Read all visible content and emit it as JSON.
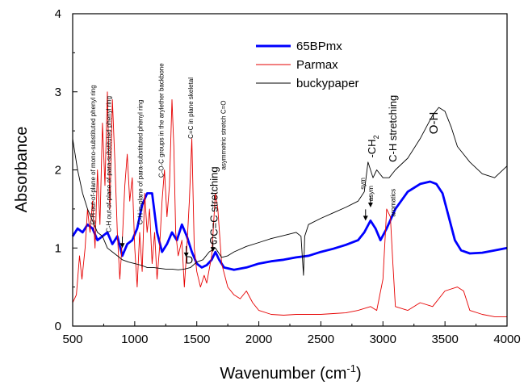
{
  "chart_data": {
    "type": "line",
    "xlabel": "Wavenumber (cm",
    "xlabel_sup": "-1",
    "xlabel_close": ")",
    "ylabel": "Absorbance",
    "xlim": [
      500,
      4000
    ],
    "ylim": [
      0,
      4
    ],
    "xticks": [
      500,
      1000,
      1500,
      2000,
      2500,
      3000,
      3500,
      4000
    ],
    "yticks": [
      0,
      1,
      2,
      3,
      4
    ],
    "legend_position": "top-center",
    "series": [
      {
        "name": "65BPmx",
        "color": "#0000ff",
        "points": [
          [
            500,
            1.15
          ],
          [
            540,
            1.25
          ],
          [
            580,
            1.2
          ],
          [
            620,
            1.3
          ],
          [
            660,
            1.25
          ],
          [
            700,
            1.1
          ],
          [
            740,
            1.15
          ],
          [
            780,
            1.2
          ],
          [
            820,
            1.05
          ],
          [
            860,
            1.15
          ],
          [
            900,
            0.9
          ],
          [
            940,
            1.05
          ],
          [
            980,
            1.1
          ],
          [
            1020,
            1.25
          ],
          [
            1060,
            1.55
          ],
          [
            1100,
            1.7
          ],
          [
            1140,
            1.7
          ],
          [
            1180,
            1.2
          ],
          [
            1220,
            0.95
          ],
          [
            1260,
            1.05
          ],
          [
            1300,
            1.2
          ],
          [
            1340,
            1.1
          ],
          [
            1380,
            1.3
          ],
          [
            1420,
            1.15
          ],
          [
            1460,
            0.95
          ],
          [
            1500,
            0.8
          ],
          [
            1540,
            0.75
          ],
          [
            1580,
            0.78
          ],
          [
            1620,
            0.85
          ],
          [
            1650,
            0.95
          ],
          [
            1680,
            0.85
          ],
          [
            1720,
            0.75
          ],
          [
            1800,
            0.72
          ],
          [
            1900,
            0.75
          ],
          [
            2000,
            0.8
          ],
          [
            2100,
            0.83
          ],
          [
            2200,
            0.85
          ],
          [
            2300,
            0.88
          ],
          [
            2400,
            0.9
          ],
          [
            2500,
            0.95
          ],
          [
            2600,
            0.99
          ],
          [
            2700,
            1.04
          ],
          [
            2800,
            1.1
          ],
          [
            2850,
            1.2
          ],
          [
            2900,
            1.35
          ],
          [
            2940,
            1.25
          ],
          [
            2980,
            1.1
          ],
          [
            3030,
            1.25
          ],
          [
            3100,
            1.5
          ],
          [
            3200,
            1.72
          ],
          [
            3300,
            1.82
          ],
          [
            3380,
            1.85
          ],
          [
            3430,
            1.82
          ],
          [
            3480,
            1.7
          ],
          [
            3530,
            1.4
          ],
          [
            3580,
            1.1
          ],
          [
            3630,
            0.97
          ],
          [
            3700,
            0.93
          ],
          [
            3800,
            0.94
          ],
          [
            3900,
            0.97
          ],
          [
            4000,
            1.0
          ]
        ]
      },
      {
        "name": "Parmax",
        "color": "#e60000",
        "points": [
          [
            500,
            0.3
          ],
          [
            530,
            0.4
          ],
          [
            555,
            0.9
          ],
          [
            575,
            0.6
          ],
          [
            600,
            1.0
          ],
          [
            620,
            1.5
          ],
          [
            640,
            1.2
          ],
          [
            660,
            1.6
          ],
          [
            680,
            1.0
          ],
          [
            700,
            2.0
          ],
          [
            720,
            1.3
          ],
          [
            740,
            2.6
          ],
          [
            760,
            1.8
          ],
          [
            780,
            3.0
          ],
          [
            800,
            1.5
          ],
          [
            820,
            2.9
          ],
          [
            840,
            2.1
          ],
          [
            860,
            1.2
          ],
          [
            880,
            0.6
          ],
          [
            900,
            1.1
          ],
          [
            920,
            1.8
          ],
          [
            940,
            2.2
          ],
          [
            960,
            1.6
          ],
          [
            980,
            1.9
          ],
          [
            1000,
            1.0
          ],
          [
            1020,
            0.5
          ],
          [
            1040,
            1.2
          ],
          [
            1060,
            0.7
          ],
          [
            1080,
            1.7
          ],
          [
            1100,
            1.2
          ],
          [
            1120,
            1.5
          ],
          [
            1140,
            0.8
          ],
          [
            1160,
            1.2
          ],
          [
            1180,
            0.6
          ],
          [
            1200,
            1.0
          ],
          [
            1220,
            1.6
          ],
          [
            1240,
            2.0
          ],
          [
            1260,
            1.4
          ],
          [
            1280,
            1.8
          ],
          [
            1300,
            2.9
          ],
          [
            1315,
            2.3
          ],
          [
            1330,
            1.2
          ],
          [
            1350,
            0.9
          ],
          [
            1380,
            1.1
          ],
          [
            1400,
            0.5
          ],
          [
            1420,
            1.0
          ],
          [
            1440,
            1.6
          ],
          [
            1460,
            2.4
          ],
          [
            1480,
            1.0
          ],
          [
            1500,
            0.7
          ],
          [
            1530,
            0.5
          ],
          [
            1560,
            0.65
          ],
          [
            1580,
            0.55
          ],
          [
            1620,
            0.9
          ],
          [
            1650,
            1.7
          ],
          [
            1670,
            1.5
          ],
          [
            1700,
            0.8
          ],
          [
            1750,
            0.5
          ],
          [
            1800,
            0.4
          ],
          [
            1850,
            0.35
          ],
          [
            1900,
            0.45
          ],
          [
            1950,
            0.3
          ],
          [
            2000,
            0.2
          ],
          [
            2100,
            0.15
          ],
          [
            2200,
            0.14
          ],
          [
            2300,
            0.15
          ],
          [
            2400,
            0.15
          ],
          [
            2500,
            0.15
          ],
          [
            2600,
            0.16
          ],
          [
            2700,
            0.17
          ],
          [
            2800,
            0.2
          ],
          [
            2900,
            0.25
          ],
          [
            2950,
            0.2
          ],
          [
            3000,
            0.6
          ],
          [
            3030,
            1.5
          ],
          [
            3060,
            1.4
          ],
          [
            3080,
            0.8
          ],
          [
            3100,
            0.25
          ],
          [
            3200,
            0.2
          ],
          [
            3300,
            0.3
          ],
          [
            3400,
            0.25
          ],
          [
            3500,
            0.45
          ],
          [
            3600,
            0.5
          ],
          [
            3650,
            0.45
          ],
          [
            3700,
            0.2
          ],
          [
            3800,
            0.15
          ],
          [
            3900,
            0.12
          ],
          [
            4000,
            0.12
          ]
        ]
      },
      {
        "name": "buckypaper",
        "color": "#000000",
        "points": [
          [
            500,
            2.4
          ],
          [
            540,
            2.0
          ],
          [
            580,
            1.7
          ],
          [
            620,
            1.5
          ],
          [
            660,
            1.35
          ],
          [
            700,
            1.2
          ],
          [
            740,
            1.15
          ],
          [
            780,
            1.0
          ],
          [
            820,
            0.95
          ],
          [
            860,
            0.9
          ],
          [
            900,
            0.85
          ],
          [
            950,
            0.82
          ],
          [
            1000,
            0.8
          ],
          [
            1050,
            0.78
          ],
          [
            1100,
            0.75
          ],
          [
            1150,
            0.75
          ],
          [
            1200,
            0.74
          ],
          [
            1250,
            0.73
          ],
          [
            1300,
            0.73
          ],
          [
            1350,
            0.72
          ],
          [
            1400,
            0.73
          ],
          [
            1450,
            0.75
          ],
          [
            1500,
            0.82
          ],
          [
            1550,
            0.85
          ],
          [
            1600,
            0.95
          ],
          [
            1650,
            1.0
          ],
          [
            1700,
            0.88
          ],
          [
            1750,
            0.9
          ],
          [
            1800,
            0.95
          ],
          [
            1900,
            1.02
          ],
          [
            2000,
            1.07
          ],
          [
            2100,
            1.12
          ],
          [
            2200,
            1.16
          ],
          [
            2300,
            1.2
          ],
          [
            2340,
            1.15
          ],
          [
            2360,
            0.65
          ],
          [
            2370,
            1.15
          ],
          [
            2400,
            1.3
          ],
          [
            2500,
            1.38
          ],
          [
            2600,
            1.45
          ],
          [
            2700,
            1.52
          ],
          [
            2800,
            1.6
          ],
          [
            2850,
            1.72
          ],
          [
            2880,
            2.1
          ],
          [
            2920,
            1.9
          ],
          [
            2950,
            2.0
          ],
          [
            3000,
            1.9
          ],
          [
            3050,
            1.9
          ],
          [
            3100,
            2.0
          ],
          [
            3200,
            2.15
          ],
          [
            3300,
            2.4
          ],
          [
            3400,
            2.7
          ],
          [
            3450,
            2.8
          ],
          [
            3500,
            2.75
          ],
          [
            3550,
            2.55
          ],
          [
            3600,
            2.3
          ],
          [
            3650,
            2.2
          ],
          [
            3700,
            2.1
          ],
          [
            3800,
            1.95
          ],
          [
            3900,
            1.9
          ],
          [
            4000,
            2.05
          ]
        ]
      }
    ],
    "annotations": [
      {
        "text": "C-H out-of-plane of mono-substituted phenyl ring",
        "x": 683,
        "y": 1.3,
        "size": "small"
      },
      {
        "text": "C-H out-of-plane of para-substituted phenyl ring",
        "x": 808,
        "y": 1.2,
        "size": "small"
      },
      {
        "text": "C-H in-plane of para-substituted phenyl ring",
        "x": 1063,
        "y": 1.3,
        "size": "small"
      },
      {
        "text": "C-O-C groups in the arylether backbone",
        "x": 1233,
        "y": 1.9,
        "size": "small"
      },
      {
        "text": "C=C in plane skeletal",
        "x": 1468,
        "y": 2.4,
        "size": "small"
      },
      {
        "text": "asymmetric stretch C=O",
        "x": 1733,
        "y": 2.0,
        "size": "small"
      },
      {
        "text": "C=C stretching",
        "x": 1668,
        "y": 1.15,
        "size": "big"
      },
      {
        "text": "sym",
        "x": 2855,
        "y": 1.75,
        "size": "small",
        "horizontal": false
      },
      {
        "text": "asym",
        "x": 2920,
        "y": 1.6,
        "size": "small"
      },
      {
        "text": "aromatics",
        "x": 3098,
        "y": 1.4,
        "size": "small"
      },
      {
        "text": "C-H stretching",
        "x": 3110,
        "y": 2.1,
        "size": "big"
      }
    ],
    "horizontal_labels": [
      {
        "text": "G",
        "x": 1635,
        "y": 1.05
      },
      {
        "text": "D",
        "x": 1440,
        "y": 0.8
      },
      {
        "text": "-CH",
        "sub": "2",
        "x": 2940,
        "y": 2.3
      },
      {
        "text": "O-H",
        "x": 3440,
        "y": 2.6
      }
    ]
  }
}
